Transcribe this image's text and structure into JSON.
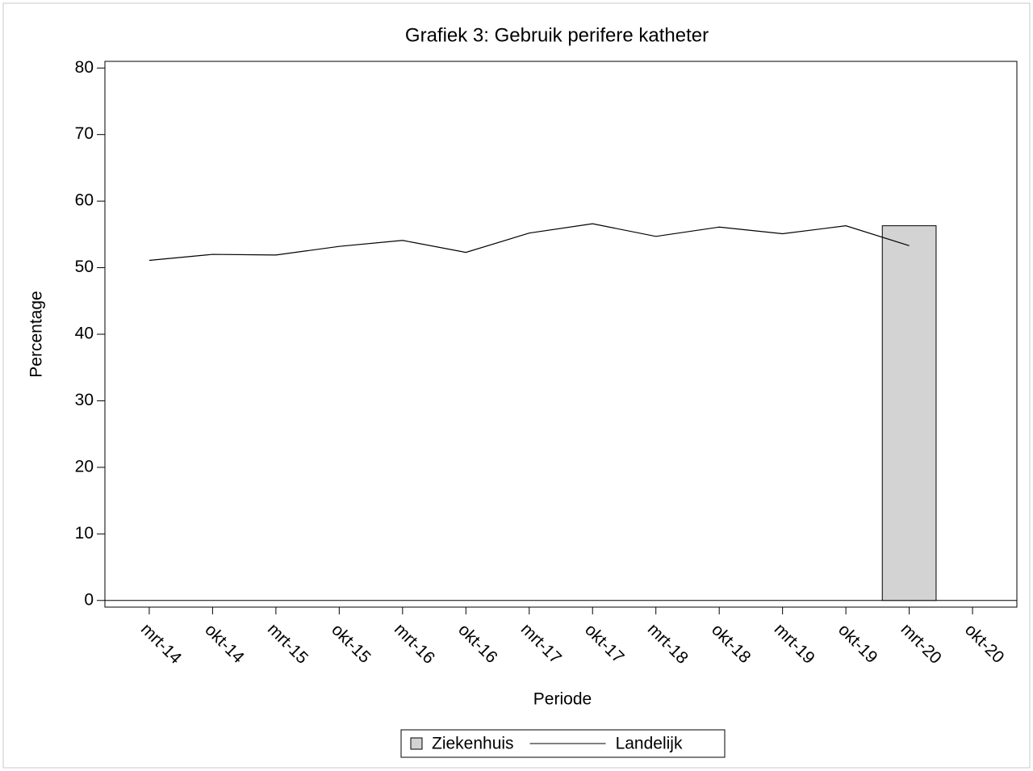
{
  "chart_data": {
    "type": "bar_line",
    "title": "Grafiek 3: Gebruik perifere katheter",
    "x_label": "Periode",
    "y_label": "Percentage",
    "categories": [
      "mrt-14",
      "okt-14",
      "mrt-15",
      "okt-15",
      "mrt-16",
      "okt-16",
      "mrt-17",
      "okt-17",
      "mrt-18",
      "okt-18",
      "mrt-19",
      "okt-19",
      "mrt-20",
      "okt-20"
    ],
    "series": [
      {
        "name": "Ziekenhuis",
        "type": "bar",
        "color": "#d3d3d3",
        "values": [
          null,
          null,
          null,
          null,
          null,
          null,
          null,
          null,
          null,
          null,
          null,
          null,
          56.3,
          null
        ]
      },
      {
        "name": "Landelijk",
        "type": "line",
        "color": "#000000",
        "values": [
          51.1,
          52.0,
          51.9,
          53.2,
          54.1,
          52.3,
          55.2,
          56.6,
          54.7,
          56.1,
          55.1,
          56.3,
          53.3,
          null
        ]
      }
    ],
    "ylim": [
      -1,
      81
    ],
    "yticks": [
      0,
      10,
      20,
      30,
      40,
      50,
      60,
      70,
      80
    ],
    "grid": false,
    "legend": "bottom"
  }
}
